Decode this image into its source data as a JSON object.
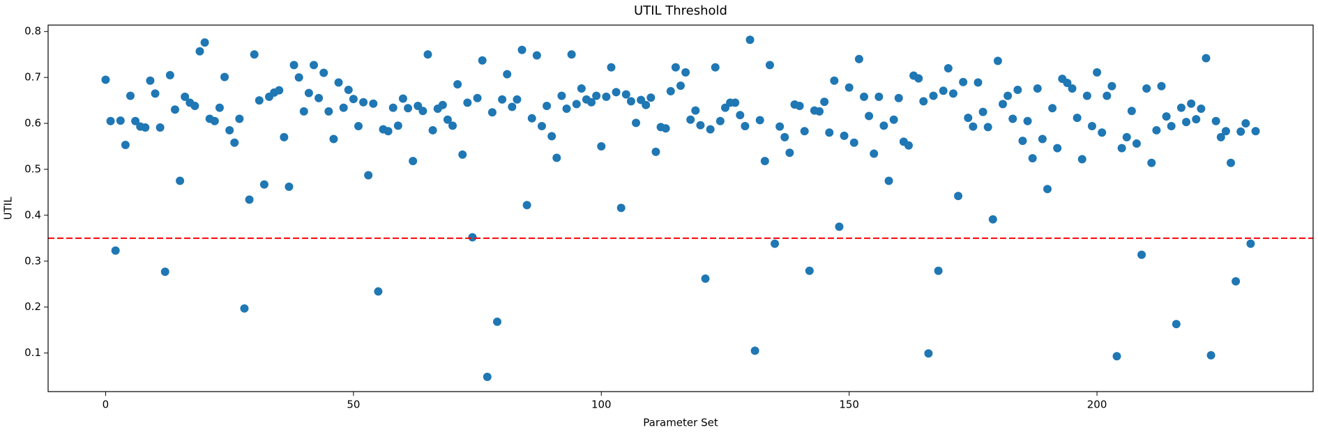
{
  "chart_data": {
    "type": "scatter",
    "title": "UTIL Threshold",
    "x_label": "Parameter Set",
    "y_label": "UTIL",
    "color": "#1f77b4",
    "threshold": {
      "value": 0.35,
      "color": "#ff0000"
    },
    "xlim": [
      -11.6,
      243.6
    ],
    "ylim": [
      0.016,
      0.814
    ],
    "xticks": [
      0,
      50,
      100,
      150,
      200
    ],
    "yticks": [
      0.1,
      0.2,
      0.3,
      0.4,
      0.5,
      0.6,
      0.7,
      0.8
    ],
    "x": [
      0,
      1,
      2,
      3,
      4,
      5,
      6,
      7,
      8,
      9,
      10,
      11,
      12,
      13,
      14,
      15,
      16,
      17,
      18,
      19,
      20,
      21,
      22,
      23,
      24,
      25,
      26,
      27,
      28,
      29,
      30,
      31,
      32,
      33,
      34,
      35,
      36,
      37,
      38,
      39,
      40,
      41,
      42,
      43,
      44,
      45,
      46,
      47,
      48,
      49,
      50,
      51,
      52,
      53,
      54,
      55,
      56,
      57,
      58,
      59,
      60,
      61,
      62,
      63,
      64,
      65,
      66,
      67,
      68,
      69,
      70,
      71,
      72,
      73,
      74,
      75,
      76,
      77,
      78,
      79,
      80,
      81,
      82,
      83,
      84,
      85,
      86,
      87,
      88,
      89,
      90,
      91,
      92,
      93,
      94,
      95,
      96,
      97,
      98,
      99,
      100,
      101,
      102,
      103,
      104,
      105,
      106,
      107,
      108,
      109,
      110,
      111,
      112,
      113,
      114,
      115,
      116,
      117,
      118,
      119,
      120,
      121,
      122,
      123,
      124,
      125,
      126,
      127,
      128,
      129,
      130,
      131,
      132,
      133,
      134,
      135,
      136,
      137,
      138,
      139,
      140,
      141,
      142,
      143,
      144,
      145,
      146,
      147,
      148,
      149,
      150,
      151,
      152,
      153,
      154,
      155,
      156,
      157,
      158,
      159,
      160,
      161,
      162,
      163,
      164,
      165,
      166,
      167,
      168,
      169,
      170,
      171,
      172,
      173,
      174,
      175,
      176,
      177,
      178,
      179,
      180,
      181,
      182,
      183,
      184,
      185,
      186,
      187,
      188,
      189,
      190,
      191,
      192,
      193,
      194,
      195,
      196,
      197,
      198,
      199,
      200,
      201,
      202,
      203,
      204,
      205,
      206,
      207,
      208,
      209,
      210,
      211,
      212,
      213,
      214,
      215,
      216,
      217,
      218,
      219,
      220,
      221,
      222,
      223,
      224,
      225,
      226,
      227,
      228,
      229,
      230,
      231,
      232
    ],
    "values": [
      0.695,
      0.605,
      0.323,
      0.606,
      0.553,
      0.66,
      0.605,
      0.593,
      0.591,
      0.693,
      0.665,
      0.591,
      0.277,
      0.705,
      0.63,
      0.475,
      0.658,
      0.645,
      0.638,
      0.757,
      0.776,
      0.61,
      0.605,
      0.634,
      0.701,
      0.585,
      0.558,
      0.61,
      0.197,
      0.434,
      0.75,
      0.65,
      0.467,
      0.658,
      0.667,
      0.672,
      0.57,
      0.462,
      0.727,
      0.7,
      0.626,
      0.666,
      0.727,
      0.655,
      0.71,
      0.626,
      0.566,
      0.689,
      0.634,
      0.673,
      0.653,
      0.594,
      0.646,
      0.487,
      0.643,
      0.234,
      0.587,
      0.583,
      0.634,
      0.595,
      0.654,
      0.633,
      0.518,
      0.638,
      0.627,
      0.75,
      0.585,
      0.632,
      0.64,
      0.608,
      0.595,
      0.685,
      0.532,
      0.645,
      0.352,
      0.655,
      0.737,
      0.048,
      0.624,
      0.168,
      0.652,
      0.707,
      0.636,
      0.652,
      0.76,
      0.422,
      0.611,
      0.748,
      0.594,
      0.638,
      0.572,
      0.525,
      0.66,
      0.632,
      0.75,
      0.642,
      0.676,
      0.652,
      0.646,
      0.66,
      0.55,
      0.658,
      0.722,
      0.668,
      0.416,
      0.663,
      0.648,
      0.601,
      0.651,
      0.64,
      0.656,
      0.538,
      0.592,
      0.589,
      0.67,
      0.722,
      0.682,
      0.711,
      0.608,
      0.628,
      0.596,
      0.262,
      0.587,
      0.722,
      0.605,
      0.634,
      0.645,
      0.645,
      0.618,
      0.594,
      0.782,
      0.105,
      0.607,
      0.518,
      0.727,
      0.338,
      0.593,
      0.57,
      0.536,
      0.641,
      0.638,
      0.583,
      0.279,
      0.628,
      0.626,
      0.647,
      0.58,
      0.693,
      0.375,
      0.573,
      0.678,
      0.558,
      0.74,
      0.658,
      0.616,
      0.534,
      0.658,
      0.595,
      0.475,
      0.608,
      0.655,
      0.56,
      0.552,
      0.704,
      0.698,
      0.648,
      0.099,
      0.66,
      0.279,
      0.671,
      0.72,
      0.665,
      0.442,
      0.69,
      0.612,
      0.593,
      0.689,
      0.625,
      0.592,
      0.391,
      0.736,
      0.642,
      0.66,
      0.61,
      0.673,
      0.562,
      0.605,
      0.524,
      0.676,
      0.566,
      0.457,
      0.633,
      0.546,
      0.697,
      0.688,
      0.676,
      0.612,
      0.522,
      0.66,
      0.594,
      0.711,
      0.58,
      0.66,
      0.681,
      0.093,
      0.546,
      0.57,
      0.627,
      0.556,
      0.314,
      0.676,
      0.514,
      0.585,
      0.681,
      0.615,
      0.594,
      0.163,
      0.634,
      0.603,
      0.643,
      0.609,
      0.632,
      0.742,
      0.095,
      0.605,
      0.57,
      0.583,
      0.514,
      0.256,
      0.582,
      0.6,
      0.338,
      0.583
    ]
  }
}
